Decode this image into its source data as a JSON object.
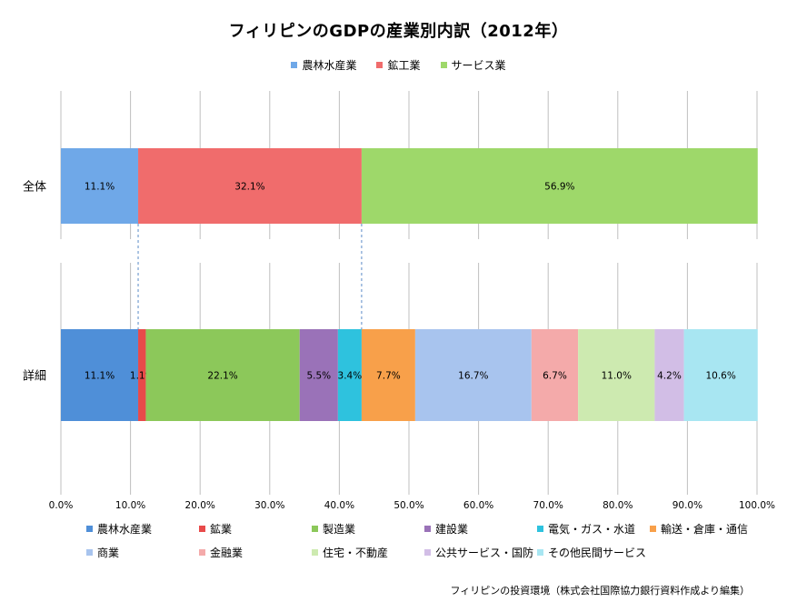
{
  "chart_data": {
    "type": "bar",
    "orientation": "horizontal",
    "stacked": true,
    "title": "フィリピンのGDPの産業別内訳（2012年）",
    "xlim": [
      0,
      100
    ],
    "x_ticks": [
      "0.0%",
      "10.0%",
      "20.0%",
      "30.0%",
      "40.0%",
      "50.0%",
      "60.0%",
      "70.0%",
      "80.0%",
      "90.0%",
      "100.0%"
    ],
    "grid": "vertical",
    "rows": [
      {
        "label": "全体",
        "segments": [
          {
            "name": "農林水産業",
            "value": 11.1,
            "label": "11.1%",
            "color": "#6fa8e8"
          },
          {
            "name": "鉱工業",
            "value": 32.1,
            "label": "32.1%",
            "color": "#f06c6c"
          },
          {
            "name": "サービス業",
            "value": 56.9,
            "label": "56.9%",
            "color": "#9ed86a"
          }
        ]
      },
      {
        "label": "詳細",
        "segments": [
          {
            "name": "農林水産業",
            "value": 11.1,
            "label": "11.1%",
            "color": "#4f8fd8"
          },
          {
            "name": "鉱業",
            "value": 1.1,
            "label": "1.1%",
            "color": "#e84a4a"
          },
          {
            "name": "製造業",
            "value": 22.1,
            "label": "22.1%",
            "color": "#8cc85a"
          },
          {
            "name": "建設業",
            "value": 5.5,
            "label": "5.5%",
            "color": "#9a72b8"
          },
          {
            "name": "電気・ガス・水道",
            "value": 3.4,
            "label": "3.4%",
            "color": "#2ec2de"
          },
          {
            "name": "輸送・倉庫・通信",
            "value": 7.7,
            "label": "7.7%",
            "color": "#f8a04a"
          },
          {
            "name": "商業",
            "value": 16.7,
            "label": "16.7%",
            "color": "#a8c4ee"
          },
          {
            "name": "金融業",
            "value": 6.7,
            "label": "6.7%",
            "color": "#f4aaaa"
          },
          {
            "name": "住宅・不動産",
            "value": 11.0,
            "label": "11.0%",
            "color": "#cdeab0"
          },
          {
            "name": "公共サービス・国防",
            "value": 4.2,
            "label": "4.2%",
            "color": "#d2bee6"
          },
          {
            "name": "その他民間サービス",
            "value": 10.6,
            "label": "10.6%",
            "color": "#a8e6f2"
          }
        ]
      }
    ],
    "top_legend": [
      "農林水産業",
      "鉱工業",
      "サービス業"
    ],
    "bottom_legend": [
      "農林水産業",
      "鉱業",
      "製造業",
      "建設業",
      "電気・ガス・水道",
      "輸送・倉庫・通信",
      "商業",
      "金融業",
      "住宅・不動産",
      "公共サービス・国防",
      "その他民間サービス"
    ],
    "connector_lines": "dashed, linking 全体 segment boundaries to 詳細 boundaries",
    "source": "フィリピンの投資環境（株式会社国際協力銀行資料作成より編集）"
  }
}
